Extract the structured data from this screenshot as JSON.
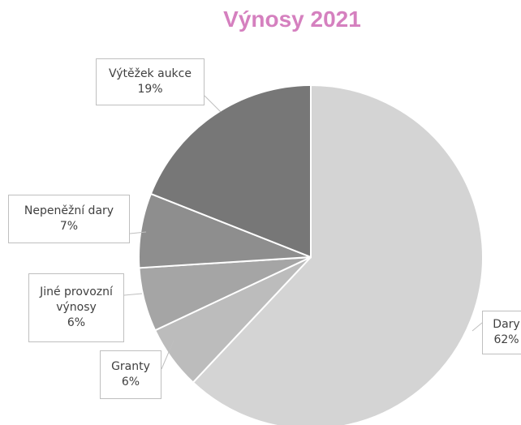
{
  "chart_data": {
    "type": "pie",
    "title": "Výnosy 2021",
    "categories": [
      "Dary",
      "Granty",
      "Jiné provozní výnosy",
      "Nepeněžní dary",
      "Výtěžek aukce"
    ],
    "values": [
      62,
      6,
      6,
      7,
      19
    ],
    "value_labels": [
      "62%",
      "6%",
      "6%",
      "7%",
      "19%"
    ],
    "colors": [
      "#d4d4d4",
      "#bcbcbc",
      "#a5a5a5",
      "#8e8e8e",
      "#777777"
    ]
  }
}
